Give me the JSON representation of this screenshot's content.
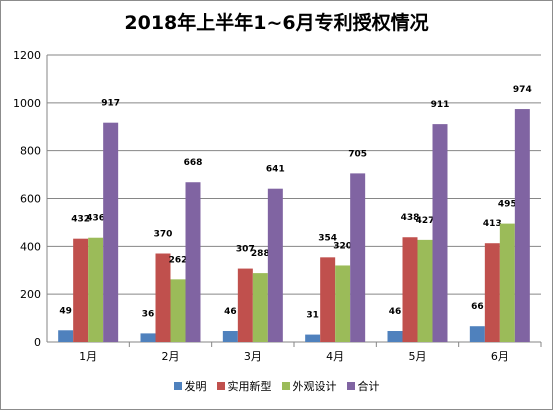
{
  "chart_data": {
    "type": "bar",
    "title": "2018年上半年1~6月专利授权情况",
    "categories": [
      "1月",
      "2月",
      "3月",
      "4月",
      "5月",
      "6月"
    ],
    "series": [
      {
        "name": "发明",
        "color": "#4f81bd",
        "values": [
          49,
          36,
          46,
          31,
          46,
          66
        ]
      },
      {
        "name": "实用新型",
        "color": "#c0504d",
        "values": [
          432,
          370,
          307,
          354,
          438,
          413
        ]
      },
      {
        "name": "外观设计",
        "color": "#9bbb59",
        "values": [
          436,
          262,
          288,
          320,
          427,
          495
        ]
      },
      {
        "name": "合计",
        "color": "#8064a2",
        "values": [
          917,
          668,
          641,
          705,
          911,
          974
        ]
      }
    ],
    "ylim": [
      0,
      1200
    ],
    "yticks": [
      0,
      200,
      400,
      600,
      800,
      1000,
      1200
    ],
    "xlabel": "",
    "ylabel": "",
    "grid": true,
    "legend_position": "bottom"
  }
}
